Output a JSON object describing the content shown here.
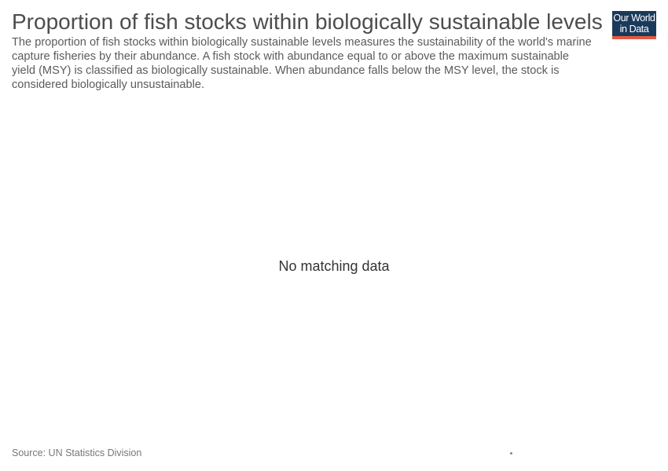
{
  "header": {
    "title": "Proportion of fish stocks within biologically sustainable levels",
    "subtitle": "The proportion of fish stocks within biologically sustainable levels measures the sustainability of the world's marine capture fisheries by their abundance. A fish stock with abundance equal to or above the maximum sustainable yield (MSY) is classified as biologically sustainable. When abundance falls below the MSY level, the stock is considered biologically unsustainable."
  },
  "logo": {
    "line1": "Our World",
    "line2": "in Data",
    "background_color": "#1a3a5c",
    "accent_color": "#e25b42"
  },
  "chart_data": {
    "type": "line",
    "title": "Proportion of fish stocks within biologically sustainable levels",
    "subtitle": "The proportion of fish stocks within biologically sustainable levels measures the sustainability of the world's marine capture fisheries by their abundance. A fish stock with abundance equal to or above the maximum sustainable yield (MSY) is classified as biologically sustainable. When abundance falls below the MSY level, the stock is considered biologically unsustainable.",
    "series": [],
    "empty_message": "No matching data"
  },
  "footer": {
    "source": "Source: UN Statistics Division"
  }
}
